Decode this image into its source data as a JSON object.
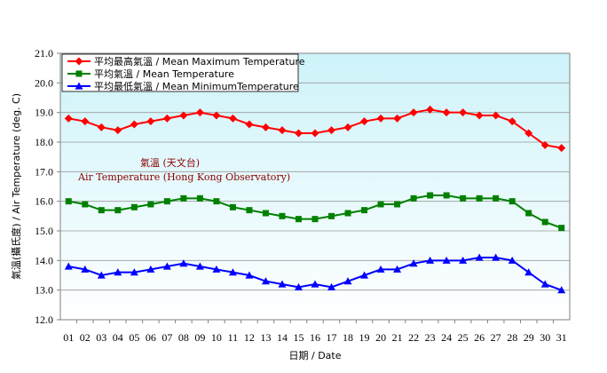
{
  "chart_data": {
    "type": "line",
    "title": "",
    "annotation_line1": "氣溫 (天文台)",
    "annotation_line2": "Air Temperature (Hong Kong Observatory)",
    "xlabel": "日期 / Date",
    "ylabel": "氣溫(攝氏度) / Air Temperature (deg. C)",
    "ylim": [
      12.0,
      21.0
    ],
    "yticks": [
      "12.0",
      "13.0",
      "14.0",
      "15.0",
      "16.0",
      "17.0",
      "18.0",
      "19.0",
      "20.0",
      "21.0"
    ],
    "categories": [
      "01",
      "02",
      "03",
      "04",
      "05",
      "06",
      "07",
      "08",
      "09",
      "10",
      "11",
      "12",
      "13",
      "14",
      "15",
      "16",
      "17",
      "18",
      "19",
      "20",
      "21",
      "22",
      "23",
      "24",
      "25",
      "26",
      "27",
      "28",
      "29",
      "30",
      "31"
    ],
    "legend_position": "top-left",
    "grid": true,
    "series": [
      {
        "name": "平均最高氣溫 / Mean Maximum Temperature",
        "color": "#ff0000",
        "marker": "diamond",
        "values": [
          18.8,
          18.7,
          18.5,
          18.4,
          18.6,
          18.7,
          18.8,
          18.9,
          19.0,
          18.9,
          18.8,
          18.6,
          18.5,
          18.4,
          18.3,
          18.3,
          18.4,
          18.5,
          18.7,
          18.8,
          18.8,
          19.0,
          19.1,
          19.0,
          19.0,
          18.9,
          18.9,
          18.7,
          18.3,
          17.9,
          17.8
        ]
      },
      {
        "name": "平均氣溫 / Mean Temperature",
        "color": "#008000",
        "marker": "square",
        "values": [
          16.0,
          15.9,
          15.7,
          15.7,
          15.8,
          15.9,
          16.0,
          16.1,
          16.1,
          16.0,
          15.8,
          15.7,
          15.6,
          15.5,
          15.4,
          15.4,
          15.5,
          15.6,
          15.7,
          15.9,
          15.9,
          16.1,
          16.2,
          16.2,
          16.1,
          16.1,
          16.1,
          16.0,
          15.6,
          15.3,
          15.1
        ]
      },
      {
        "name": "平均最低氣溫 / Mean MinimumTemperature",
        "color": "#0000ff",
        "marker": "triangle",
        "values": [
          13.8,
          13.7,
          13.5,
          13.6,
          13.6,
          13.7,
          13.8,
          13.9,
          13.8,
          13.7,
          13.6,
          13.5,
          13.3,
          13.2,
          13.1,
          13.2,
          13.1,
          13.3,
          13.5,
          13.7,
          13.7,
          13.9,
          14.0,
          14.0,
          14.0,
          14.1,
          14.1,
          14.0,
          13.6,
          13.2,
          13.0
        ]
      }
    ]
  }
}
